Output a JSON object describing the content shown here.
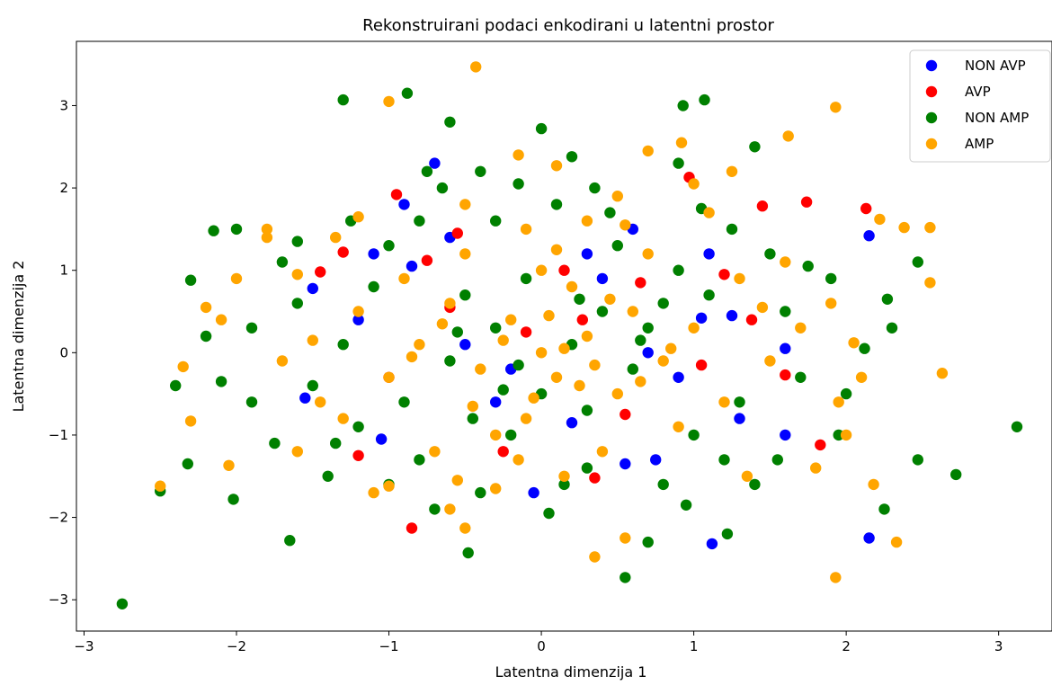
{
  "chart_data": {
    "type": "scatter",
    "title": "Rekonstruirani podaci enkodirani u latentni prostor",
    "xlabel": "Latentna dimenzija 1",
    "ylabel": "Latentna dimenzija 2",
    "xlim": [
      -3.05,
      3.35
    ],
    "ylim": [
      -3.38,
      3.78
    ],
    "xticks": [
      -3,
      -2,
      -1,
      0,
      1,
      2,
      3
    ],
    "yticks": [
      -3,
      -2,
      -1,
      0,
      1,
      2,
      3
    ],
    "grid": false,
    "legend_position": "top-right",
    "series": [
      {
        "name": "NON AVP",
        "color": "#0000ff",
        "points": [
          [
            -0.7,
            2.3
          ],
          [
            -0.9,
            1.8
          ],
          [
            0.3,
            1.2
          ],
          [
            1.1,
            1.2
          ],
          [
            2.15,
            1.42
          ],
          [
            -1.1,
            1.2
          ],
          [
            -0.85,
            1.05
          ],
          [
            -1.5,
            0.78
          ],
          [
            1.05,
            0.42
          ],
          [
            -1.55,
            -0.55
          ],
          [
            -1.05,
            -1.05
          ],
          [
            1.6,
            -1.0
          ],
          [
            2.15,
            -2.25
          ],
          [
            1.12,
            -2.32
          ],
          [
            0.55,
            -1.35
          ],
          [
            -0.5,
            0.1
          ],
          [
            0.2,
            -0.85
          ],
          [
            1.25,
            0.45
          ],
          [
            0.7,
            0.0
          ],
          [
            -0.3,
            -0.6
          ],
          [
            0.9,
            -0.3
          ],
          [
            -0.6,
            1.4
          ],
          [
            0.4,
            0.9
          ],
          [
            -1.2,
            0.4
          ],
          [
            1.6,
            0.05
          ],
          [
            0.75,
            -1.3
          ],
          [
            -0.05,
            -1.7
          ],
          [
            0.6,
            1.5
          ],
          [
            -0.2,
            -0.2
          ],
          [
            1.3,
            -0.8
          ]
        ]
      },
      {
        "name": "AVP",
        "color": "#ff0000",
        "points": [
          [
            -1.3,
            1.22
          ],
          [
            -1.45,
            0.98
          ],
          [
            -0.95,
            1.92
          ],
          [
            -0.55,
            1.45
          ],
          [
            0.97,
            2.13
          ],
          [
            1.45,
            1.78
          ],
          [
            1.74,
            1.83
          ],
          [
            2.13,
            1.75
          ],
          [
            -0.85,
            -2.13
          ],
          [
            -1.2,
            -1.25
          ],
          [
            1.83,
            -1.12
          ],
          [
            1.6,
            -0.27
          ],
          [
            -0.75,
            1.12
          ],
          [
            0.27,
            0.4
          ],
          [
            0.35,
            -1.52
          ],
          [
            1.38,
            0.4
          ],
          [
            -0.25,
            -1.2
          ],
          [
            0.65,
            0.85
          ],
          [
            -0.1,
            0.25
          ],
          [
            0.55,
            -0.75
          ],
          [
            1.05,
            -0.15
          ],
          [
            -0.6,
            0.55
          ],
          [
            0.15,
            1.0
          ],
          [
            -1.0,
            -0.3
          ],
          [
            1.2,
            0.95
          ]
        ]
      },
      {
        "name": "NON AMP",
        "color": "#008000",
        "points": [
          [
            -2.75,
            -3.05
          ],
          [
            -1.3,
            3.07
          ],
          [
            -0.88,
            3.15
          ],
          [
            -0.6,
            2.8
          ],
          [
            0.0,
            2.72
          ],
          [
            1.07,
            3.07
          ],
          [
            0.93,
            3.0
          ],
          [
            3.12,
            -0.9
          ],
          [
            2.72,
            -1.48
          ],
          [
            2.47,
            -1.3
          ],
          [
            -2.5,
            -1.68
          ],
          [
            -1.65,
            -2.28
          ],
          [
            -0.48,
            -2.43
          ],
          [
            0.55,
            -2.73
          ],
          [
            0.7,
            -2.3
          ],
          [
            2.27,
            0.65
          ],
          [
            2.47,
            1.1
          ],
          [
            -2.3,
            0.88
          ],
          [
            -2.15,
            1.48
          ],
          [
            -2.0,
            1.5
          ],
          [
            -2.32,
            -1.35
          ],
          [
            -2.02,
            -1.78
          ],
          [
            -2.1,
            -0.35
          ],
          [
            1.22,
            -2.2
          ],
          [
            2.25,
            -1.9
          ],
          [
            2.12,
            0.05
          ],
          [
            1.95,
            -1.0
          ],
          [
            -1.9,
            0.3
          ],
          [
            -1.75,
            -1.1
          ],
          [
            -1.7,
            1.1
          ],
          [
            -0.4,
            2.2
          ],
          [
            0.2,
            2.38
          ],
          [
            -0.75,
            2.2
          ],
          [
            1.4,
            2.5
          ],
          [
            0.9,
            2.3
          ],
          [
            -1.4,
            -1.5
          ],
          [
            1.5,
            1.2
          ],
          [
            -1.1,
            0.8
          ],
          [
            0.8,
            -1.6
          ],
          [
            -0.8,
            -1.3
          ],
          [
            1.3,
            -0.6
          ],
          [
            -1.3,
            0.1
          ],
          [
            0.5,
            1.3
          ],
          [
            -0.3,
            1.6
          ],
          [
            0.3,
            -1.4
          ],
          [
            1.1,
            0.7
          ],
          [
            -0.9,
            -0.6
          ],
          [
            0.0,
            -0.5
          ],
          [
            -0.5,
            0.7
          ],
          [
            0.7,
            0.3
          ],
          [
            -1.6,
            0.6
          ],
          [
            1.7,
            -0.3
          ],
          [
            -0.2,
            -1.0
          ],
          [
            0.4,
            0.5
          ],
          [
            1.0,
            -1.0
          ],
          [
            -1.0,
            1.3
          ],
          [
            0.2,
            0.1
          ],
          [
            -0.6,
            -0.1
          ],
          [
            0.9,
            1.0
          ],
          [
            -1.2,
            -0.9
          ],
          [
            1.6,
            0.5
          ],
          [
            -0.4,
            -1.7
          ],
          [
            0.6,
            -0.2
          ],
          [
            -0.1,
            0.9
          ],
          [
            1.2,
            -1.3
          ],
          [
            -1.5,
            -0.4
          ],
          [
            0.1,
            1.8
          ],
          [
            -0.7,
            -1.9
          ],
          [
            1.9,
            0.9
          ],
          [
            -1.9,
            -0.6
          ],
          [
            0.3,
            -0.7
          ],
          [
            -0.3,
            0.3
          ],
          [
            0.8,
            0.6
          ],
          [
            -0.8,
            1.6
          ],
          [
            1.4,
            -1.6
          ],
          [
            -2.2,
            0.2
          ],
          [
            2.0,
            -0.5
          ],
          [
            -0.45,
            -0.8
          ],
          [
            0.45,
            1.7
          ],
          [
            1.75,
            1.05
          ],
          [
            -1.35,
            -1.1
          ],
          [
            0.05,
            -1.95
          ],
          [
            -0.15,
            2.05
          ],
          [
            1.05,
            1.75
          ],
          [
            -1.0,
            -1.6
          ],
          [
            0.95,
            -1.85
          ],
          [
            -1.6,
            1.35
          ],
          [
            1.55,
            -1.3
          ],
          [
            2.3,
            0.3
          ],
          [
            -2.4,
            -0.4
          ],
          [
            0.35,
            2.0
          ],
          [
            -0.65,
            2.0
          ],
          [
            1.25,
            1.5
          ],
          [
            -1.25,
            1.6
          ],
          [
            0.15,
            -1.6
          ],
          [
            -0.25,
            -0.45
          ],
          [
            0.65,
            0.15
          ],
          [
            -0.55,
            0.25
          ],
          [
            0.25,
            0.65
          ],
          [
            -0.15,
            -0.15
          ]
        ]
      },
      {
        "name": "AMP",
        "color": "#ffa500",
        "points": [
          [
            -0.43,
            3.47
          ],
          [
            1.93,
            2.98
          ],
          [
            -1.0,
            3.05
          ],
          [
            0.7,
            2.45
          ],
          [
            0.92,
            2.55
          ],
          [
            1.62,
            2.63
          ],
          [
            -2.35,
            -0.17
          ],
          [
            -2.5,
            -1.62
          ],
          [
            -2.3,
            -0.83
          ],
          [
            -2.05,
            -1.37
          ],
          [
            1.93,
            -2.73
          ],
          [
            2.33,
            -2.3
          ],
          [
            2.18,
            -1.6
          ],
          [
            2.63,
            -0.25
          ],
          [
            2.55,
            1.52
          ],
          [
            2.55,
            0.85
          ],
          [
            2.38,
            1.52
          ],
          [
            2.22,
            1.62
          ],
          [
            2.05,
            0.12
          ],
          [
            1.95,
            -0.6
          ],
          [
            0.35,
            -2.48
          ],
          [
            -0.5,
            -2.13
          ],
          [
            0.55,
            -2.25
          ],
          [
            -1.0,
            -1.62
          ],
          [
            -0.6,
            -1.9
          ],
          [
            1.0,
            2.05
          ],
          [
            1.25,
            2.2
          ],
          [
            -1.2,
            1.65
          ],
          [
            -2.2,
            0.55
          ],
          [
            -1.8,
            1.4
          ],
          [
            -1.6,
            0.95
          ],
          [
            0.1,
            2.27
          ],
          [
            -0.15,
            2.4
          ],
          [
            0.5,
            1.9
          ],
          [
            -0.5,
            1.8
          ],
          [
            0.0,
            0.0
          ],
          [
            0.1,
            -0.3
          ],
          [
            -0.2,
            0.4
          ],
          [
            0.3,
            0.2
          ],
          [
            -0.4,
            -0.2
          ],
          [
            0.5,
            -0.5
          ],
          [
            -0.6,
            0.6
          ],
          [
            0.2,
            0.8
          ],
          [
            -0.1,
            -0.8
          ],
          [
            0.6,
            0.5
          ],
          [
            -0.8,
            0.1
          ],
          [
            0.8,
            -0.1
          ],
          [
            0.0,
            1.0
          ],
          [
            -0.3,
            -1.0
          ],
          [
            1.0,
            0.3
          ],
          [
            -1.0,
            -0.3
          ],
          [
            0.4,
            -1.2
          ],
          [
            -0.5,
            1.2
          ],
          [
            1.2,
            -0.6
          ],
          [
            -1.2,
            0.5
          ],
          [
            0.7,
            1.2
          ],
          [
            -0.7,
            -1.2
          ],
          [
            1.3,
            0.9
          ],
          [
            -1.3,
            -0.8
          ],
          [
            0.15,
            -1.5
          ],
          [
            -0.1,
            1.5
          ],
          [
            1.5,
            -0.1
          ],
          [
            -1.5,
            0.15
          ],
          [
            0.9,
            -0.9
          ],
          [
            -0.9,
            0.9
          ],
          [
            0.05,
            0.45
          ],
          [
            0.35,
            -0.15
          ],
          [
            -0.25,
            0.15
          ],
          [
            0.25,
            -0.4
          ],
          [
            -0.05,
            -0.55
          ],
          [
            0.45,
            0.65
          ],
          [
            -0.45,
            -0.65
          ],
          [
            0.65,
            -0.35
          ],
          [
            -0.65,
            0.35
          ],
          [
            0.15,
            0.05
          ],
          [
            1.7,
            0.3
          ],
          [
            -1.7,
            -0.1
          ],
          [
            1.6,
            1.1
          ],
          [
            -1.6,
            -1.2
          ],
          [
            1.1,
            1.7
          ],
          [
            -1.1,
            -1.7
          ],
          [
            2.0,
            -1.0
          ],
          [
            -2.0,
            0.9
          ],
          [
            1.8,
            -1.4
          ],
          [
            -1.8,
            1.5
          ],
          [
            0.55,
            1.55
          ],
          [
            -0.55,
            -1.55
          ],
          [
            1.35,
            -1.5
          ],
          [
            -1.35,
            1.4
          ],
          [
            0.85,
            0.05
          ],
          [
            -0.85,
            -0.05
          ],
          [
            0.1,
            1.25
          ],
          [
            -0.15,
            -1.3
          ],
          [
            1.45,
            0.55
          ],
          [
            -1.45,
            -0.6
          ],
          [
            2.1,
            -0.3
          ],
          [
            -2.1,
            0.4
          ],
          [
            0.3,
            1.6
          ],
          [
            -0.3,
            -1.65
          ],
          [
            1.9,
            0.6
          ]
        ]
      }
    ]
  }
}
